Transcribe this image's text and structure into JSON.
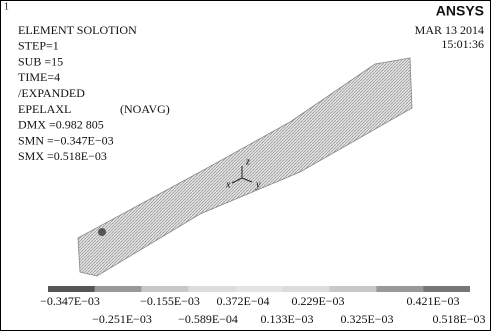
{
  "corner_number": "1",
  "brand": "ANSYS",
  "date": "MAR 13 2014",
  "time": "15:01:36",
  "info_lines": [
    "ELEMENT SOLOTION",
    "STEP=1",
    "SUB =15",
    "TIME=4",
    "/EXPANDED",
    "EPELAXL",
    "DMX =0.982 805",
    "SMN =−0.347E−03",
    "SMX =0.518E−03"
  ],
  "info_tag": "(NOAVG)",
  "triad": {
    "z": "z",
    "x": "x",
    "y": "y"
  },
  "legend_top": [
    "−0.347E−03",
    "−0.155E−03",
    "0.372E−04",
    "0.229E−03",
    "0.421E−03"
  ],
  "legend_bottom": [
    "−0.251E−03",
    "−0.589E−04",
    "0.133E−03",
    "0.325E−03",
    "0.518E−03"
  ]
}
